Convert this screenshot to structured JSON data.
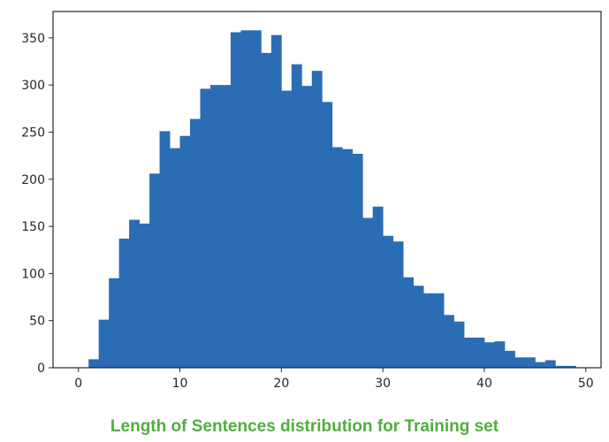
{
  "caption": "Length of Sentences distribution for Training set",
  "colors": {
    "bar": "#2a6db5",
    "caption": "#4fae3f",
    "axis": "#262626"
  },
  "chart_data": {
    "type": "bar",
    "histogram": true,
    "bin_width": 1,
    "bin_starts": [
      1,
      2,
      3,
      4,
      5,
      6,
      7,
      8,
      9,
      10,
      11,
      12,
      13,
      14,
      15,
      16,
      17,
      18,
      19,
      20,
      21,
      22,
      23,
      24,
      25,
      26,
      27,
      28,
      29,
      30,
      31,
      32,
      33,
      34,
      35,
      36,
      37,
      38,
      39,
      40,
      41,
      42,
      43,
      44,
      45,
      46,
      47,
      48
    ],
    "values": [
      9,
      51,
      95,
      137,
      157,
      153,
      206,
      251,
      233,
      246,
      264,
      296,
      300,
      300,
      356,
      358,
      358,
      334,
      353,
      294,
      322,
      299,
      315,
      282,
      234,
      232,
      227,
      159,
      171,
      140,
      134,
      96,
      87,
      79,
      79,
      56,
      49,
      32,
      32,
      27,
      28,
      18,
      11,
      11,
      6,
      8,
      2,
      2
    ],
    "xlim": [
      -2.5,
      51.5
    ],
    "ylim": [
      0,
      378
    ],
    "xticks": [
      0,
      10,
      20,
      30,
      40,
      50
    ],
    "yticks": [
      0,
      50,
      100,
      150,
      200,
      250,
      300,
      350
    ],
    "title": "",
    "xlabel": "",
    "ylabel": "",
    "grid": false,
    "legend": false
  }
}
